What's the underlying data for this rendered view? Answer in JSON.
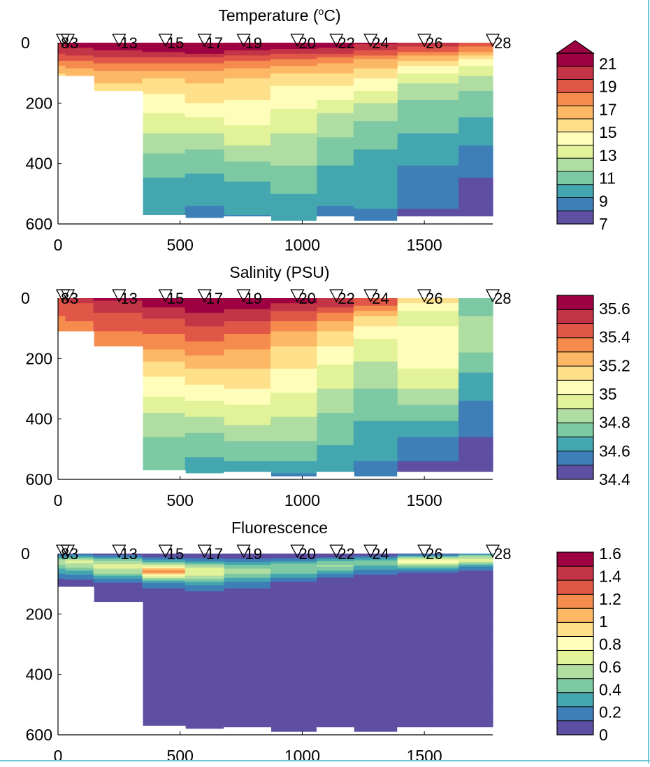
{
  "colors": {
    "palette_spectral": [
      "#5e4fa2",
      "#3f7fb8",
      "#44a6af",
      "#7dc9a4",
      "#b0dda2",
      "#e2f298",
      "#fefeba",
      "#fee08b",
      "#fcb864",
      "#f58c4e",
      "#e15747",
      "#c23446",
      "#9e0142"
    ],
    "cap_temperature": "#9e0142",
    "edge": "#6cc9d6"
  },
  "stations": [
    "0",
    "8",
    "3",
    "13",
    "15",
    "17",
    "19",
    "20",
    "22",
    "24",
    "26",
    "28"
  ],
  "chart_data": [
    {
      "type": "heatmap",
      "title": "Temperature (°C)",
      "x_ticks": [
        0,
        500,
        1000,
        1500
      ],
      "y_ticks": [
        200,
        400,
        600
      ],
      "xlim": [
        0,
        1780
      ],
      "ylim": [
        600,
        0
      ],
      "colorbar_ticks": [
        "21",
        "19",
        "17",
        "15",
        "13",
        "11",
        "9",
        "7"
      ],
      "colorbar_range": [
        7,
        21.5
      ],
      "colorbar_extend_max": true,
      "station_labels": [
        "0",
        "8",
        "3",
        "13",
        "15",
        "17",
        "19",
        "20",
        "22",
        "24",
        "26",
        "28"
      ],
      "x_km": [
        0,
        20,
        40,
        250,
        440,
        600,
        760,
        980,
        1140,
        1280,
        1500,
        1780
      ],
      "bottom_depth_m": [
        110,
        110,
        110,
        160,
        570,
        580,
        575,
        590,
        575,
        590,
        575,
        575
      ],
      "depth_profile_m": [
        0,
        25,
        60,
        110,
        160,
        220,
        300,
        380,
        460,
        540,
        600
      ],
      "values": [
        [
          20.5,
          20.0,
          18.0,
          15.5,
          15.0,
          14.5,
          14.0,
          13.5,
          13.0,
          12.5,
          12.0
        ],
        [
          20.5,
          20.0,
          18.0,
          15.5,
          15.0,
          14.5,
          14.0,
          13.5,
          13.0,
          12.5,
          12.0
        ],
        [
          20.8,
          20.2,
          18.2,
          16.0,
          15.3,
          14.8,
          14.2,
          13.6,
          13.0,
          12.4,
          12.0
        ],
        [
          21.2,
          20.4,
          18.5,
          16.5,
          15.5,
          14.6,
          13.6,
          12.8,
          12.0,
          11.4,
          11.0
        ],
        [
          21.6,
          20.6,
          18.4,
          16.2,
          15.0,
          13.8,
          12.6,
          11.2,
          10.2,
          9.6,
          9.3
        ],
        [
          21.8,
          21.0,
          18.6,
          16.5,
          15.5,
          14.4,
          12.6,
          11.0,
          9.9,
          9.2,
          8.8
        ],
        [
          21.8,
          20.6,
          18.0,
          16.0,
          15.2,
          14.5,
          13.4,
          11.6,
          10.4,
          9.5,
          9.0
        ],
        [
          21.6,
          20.2,
          17.6,
          15.4,
          14.6,
          13.8,
          12.5,
          11.8,
          10.8,
          10.0,
          9.4
        ],
        [
          21.4,
          20.0,
          17.4,
          15.6,
          14.4,
          12.8,
          11.6,
          10.6,
          9.8,
          9.2,
          8.8
        ],
        [
          20.6,
          19.2,
          16.8,
          15.0,
          13.6,
          12.0,
          10.8,
          10.1,
          9.6,
          9.3,
          9.0
        ],
        [
          20.0,
          18.5,
          15.8,
          13.2,
          11.8,
          11.0,
          10.3,
          9.5,
          8.8,
          8.2,
          7.8
        ],
        [
          19.0,
          17.5,
          14.5,
          12.5,
          11.4,
          10.6,
          9.6,
          8.8,
          8.0,
          7.4,
          7.1
        ]
      ]
    },
    {
      "type": "heatmap",
      "title": "Salinity (PSU)",
      "x_ticks": [
        0,
        500,
        1000,
        1500
      ],
      "y_ticks": [
        200,
        400,
        600
      ],
      "xlim": [
        0,
        1780
      ],
      "ylim": [
        600,
        0
      ],
      "colorbar_ticks": [
        "35.6",
        "35.4",
        "35.2",
        "35",
        "34.8",
        "34.6",
        "34.4"
      ],
      "colorbar_range": [
        34.4,
        35.7
      ],
      "colorbar_extend_max": false,
      "station_labels": [
        "0",
        "8",
        "3",
        "13",
        "15",
        "17",
        "19",
        "20",
        "22",
        "24",
        "26",
        "28"
      ],
      "x_km": [
        0,
        20,
        40,
        250,
        440,
        600,
        760,
        980,
        1140,
        1280,
        1500,
        1780
      ],
      "bottom_depth_m": [
        110,
        110,
        110,
        160,
        570,
        580,
        575,
        590,
        575,
        590,
        575,
        575
      ],
      "depth_profile_m": [
        0,
        25,
        60,
        110,
        160,
        220,
        300,
        380,
        460,
        540,
        600
      ],
      "values": [
        [
          35.5,
          35.45,
          35.4,
          35.3,
          35.25,
          35.2,
          35.15,
          35.1,
          35.05,
          35.0,
          34.95
        ],
        [
          35.5,
          35.45,
          35.4,
          35.3,
          35.25,
          35.2,
          35.15,
          35.1,
          35.05,
          35.0,
          34.95
        ],
        [
          35.55,
          35.48,
          35.42,
          35.35,
          35.28,
          35.22,
          35.15,
          35.08,
          35.0,
          34.95,
          34.9
        ],
        [
          35.62,
          35.55,
          35.48,
          35.4,
          35.33,
          35.22,
          35.12,
          35.02,
          34.94,
          34.88,
          34.84
        ],
        [
          35.68,
          35.62,
          35.52,
          35.42,
          35.32,
          35.18,
          35.04,
          34.9,
          34.8,
          34.74,
          34.7
        ],
        [
          35.7,
          35.66,
          35.58,
          35.46,
          35.36,
          35.24,
          35.06,
          34.92,
          34.78,
          34.68,
          34.6
        ],
        [
          35.7,
          35.64,
          35.54,
          35.42,
          35.32,
          35.22,
          35.1,
          34.96,
          34.82,
          34.7,
          34.64
        ],
        [
          35.66,
          35.58,
          35.44,
          35.3,
          35.2,
          35.12,
          35.02,
          34.92,
          34.82,
          34.7,
          34.56
        ],
        [
          35.6,
          35.52,
          35.34,
          35.2,
          35.1,
          35.0,
          34.9,
          34.8,
          34.72,
          34.64,
          34.58
        ],
        [
          35.5,
          35.4,
          35.2,
          35.04,
          34.96,
          34.88,
          34.8,
          34.72,
          34.66,
          34.6,
          34.56
        ],
        [
          35.2,
          35.04,
          34.96,
          35.02,
          35.08,
          35.02,
          34.9,
          34.76,
          34.6,
          34.5,
          34.46
        ],
        [
          34.72,
          34.7,
          34.8,
          34.9,
          34.84,
          34.74,
          34.64,
          34.56,
          34.5,
          34.46,
          34.44
        ]
      ]
    },
    {
      "type": "heatmap",
      "title": "Fluorescence",
      "x_ticks": [
        0,
        500,
        1000,
        1500
      ],
      "y_ticks": [
        200,
        400,
        600
      ],
      "xlim": [
        0,
        1780
      ],
      "ylim": [
        600,
        0
      ],
      "colorbar_ticks": [
        "1.6",
        "1.4",
        "1.2",
        "1",
        "0.8",
        "0.6",
        "0.4",
        "0.2",
        "0"
      ],
      "colorbar_range": [
        0,
        1.7
      ],
      "colorbar_extend_max": false,
      "station_labels": [
        "0",
        "8",
        "3",
        "13",
        "15",
        "17",
        "19",
        "20",
        "22",
        "24",
        "26",
        "28"
      ],
      "x_km": [
        0,
        20,
        40,
        250,
        440,
        600,
        760,
        980,
        1140,
        1280,
        1500,
        1780
      ],
      "bottom_depth_m": [
        110,
        110,
        110,
        160,
        570,
        580,
        575,
        590,
        575,
        590,
        575,
        575
      ],
      "depth_profile_m": [
        0,
        10,
        25,
        40,
        60,
        80,
        100,
        130,
        160,
        250,
        600
      ],
      "values": [
        [
          0.1,
          0.3,
          0.6,
          0.5,
          0.3,
          0.15,
          0.05,
          0.02,
          0.0,
          0.0,
          0.0
        ],
        [
          0.1,
          0.3,
          0.6,
          0.5,
          0.3,
          0.15,
          0.05,
          0.02,
          0.0,
          0.0,
          0.0
        ],
        [
          0.1,
          0.35,
          0.7,
          0.6,
          0.35,
          0.18,
          0.06,
          0.02,
          0.0,
          0.0,
          0.0
        ],
        [
          0.05,
          0.2,
          0.55,
          0.7,
          0.6,
          0.3,
          0.1,
          0.03,
          0.0,
          0.0,
          0.0
        ],
        [
          0.05,
          0.1,
          0.35,
          0.7,
          1.3,
          0.6,
          0.2,
          0.05,
          0.0,
          0.0,
          0.0
        ],
        [
          0.02,
          0.08,
          0.25,
          0.55,
          0.8,
          0.55,
          0.3,
          0.1,
          0.03,
          0.0,
          0.0
        ],
        [
          0.02,
          0.06,
          0.2,
          0.45,
          0.6,
          0.4,
          0.2,
          0.08,
          0.02,
          0.0,
          0.0
        ],
        [
          0.02,
          0.05,
          0.25,
          0.5,
          0.45,
          0.25,
          0.08,
          0.02,
          0.0,
          0.0,
          0.0
        ],
        [
          0.03,
          0.1,
          0.4,
          0.55,
          0.35,
          0.12,
          0.03,
          0.0,
          0.0,
          0.0,
          0.0
        ],
        [
          0.03,
          0.15,
          0.45,
          0.4,
          0.2,
          0.05,
          0.0,
          0.0,
          0.0,
          0.0,
          0.0
        ],
        [
          0.05,
          0.4,
          0.9,
          0.5,
          0.15,
          0.03,
          0.0,
          0.0,
          0.0,
          0.0,
          0.0
        ],
        [
          0.2,
          0.6,
          0.7,
          0.3,
          0.1,
          0.02,
          0.0,
          0.0,
          0.0,
          0.0,
          0.0
        ]
      ]
    }
  ]
}
